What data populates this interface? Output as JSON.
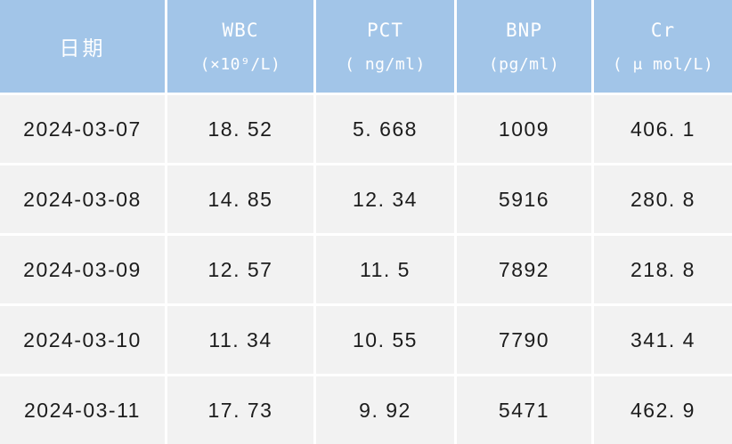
{
  "table": {
    "columns": [
      {
        "key": "date",
        "label": "日期",
        "unit": ""
      },
      {
        "key": "wbc",
        "label": "WBC",
        "unit": "(×10⁹/L)"
      },
      {
        "key": "pct",
        "label": "PCT",
        "unit": "( ng/ml)"
      },
      {
        "key": "bnp",
        "label": "BNP",
        "unit": "(pg/ml)"
      },
      {
        "key": "cr",
        "label": "Cr",
        "unit": "( μ mol/L)"
      }
    ],
    "rows": [
      [
        "2024-03-07",
        "18. 52",
        "5. 668",
        "1009",
        "406. 1"
      ],
      [
        "2024-03-08",
        "14. 85",
        "12. 34",
        "5916",
        "280. 8"
      ],
      [
        "2024-03-09",
        "12. 57",
        "11. 5",
        "7892",
        "218. 8"
      ],
      [
        "2024-03-10",
        "11. 34",
        "10. 55",
        "7790",
        "341. 4"
      ],
      [
        "2024-03-11",
        "17. 73",
        "9. 92",
        "5471",
        "462. 9"
      ]
    ]
  },
  "chart_data": {
    "type": "table",
    "title": "",
    "columns": [
      "日期",
      "WBC (×10⁹/L)",
      "PCT (ng/ml)",
      "BNP (pg/ml)",
      "Cr (μmol/L)"
    ],
    "rows": [
      [
        "2024-03-07",
        18.52,
        5.668,
        1009,
        406.1
      ],
      [
        "2024-03-08",
        14.85,
        12.34,
        5916,
        280.8
      ],
      [
        "2024-03-09",
        12.57,
        11.5,
        7892,
        218.8
      ],
      [
        "2024-03-10",
        11.34,
        10.55,
        7790,
        341.4
      ],
      [
        "2024-03-11",
        17.73,
        9.92,
        5471,
        462.9
      ]
    ]
  },
  "colors": {
    "header_bg": "#a2c5e8",
    "header_text": "#ffffff",
    "row_bg": "#f2f2f2",
    "gridline": "#ffffff",
    "body_text": "#1c1c1c"
  }
}
